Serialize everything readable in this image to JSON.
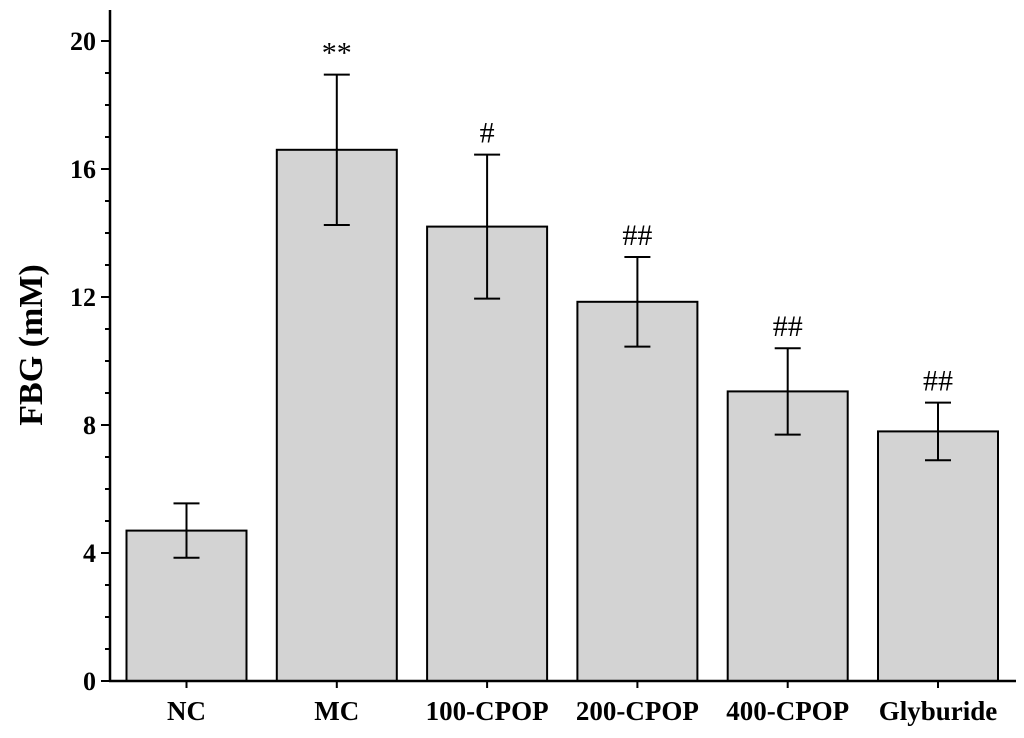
{
  "chart_data": {
    "type": "bar",
    "title": "",
    "xlabel": "",
    "ylabel": "FBG (mM)",
    "ylim": [
      0,
      21
    ],
    "yticks": [
      0,
      4,
      8,
      12,
      16,
      20
    ],
    "categories": [
      "NC",
      "MC",
      "100-CPOP",
      "200-CPOP",
      "400-CPOP",
      "Glyburide"
    ],
    "values": [
      4.7,
      16.6,
      14.2,
      11.85,
      9.05,
      7.8
    ],
    "errors": [
      0.85,
      2.35,
      2.25,
      1.4,
      1.35,
      0.9
    ],
    "annotations": [
      "",
      "**",
      "#",
      "##",
      "##",
      "##"
    ],
    "bar_color": "#d3d3d3",
    "grid": false,
    "legend": "none"
  }
}
